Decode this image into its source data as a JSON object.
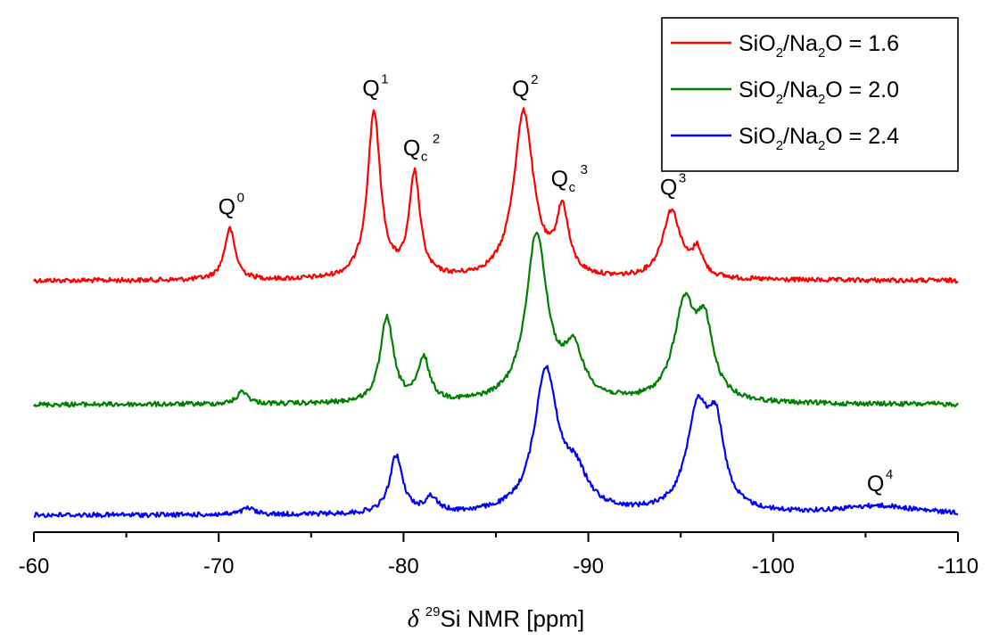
{
  "chart_data": {
    "type": "line",
    "title": "",
    "xlabel": {
      "symbol": "δ",
      "isotope_mass": "29",
      "text": "Si NMR [ppm]"
    },
    "ylabel": "",
    "xlim": [
      -60,
      -110
    ],
    "x_axis_reversed": true,
    "x_ticks": [
      -60,
      -70,
      -80,
      -90,
      -100,
      -110
    ],
    "x_tick_labels": [
      "-60",
      "-70",
      "-80",
      "-90",
      "-100",
      "-110"
    ],
    "y_ticks_shown": false,
    "grid": false,
    "legend_placement": "top-right",
    "series": [
      {
        "name": "SiO2/Na2O = 1.6",
        "legend": {
          "a": "SiO",
          "a_sub": "2",
          "b": "/Na",
          "b_sub": "2",
          "c": "O = 1.6"
        },
        "color": "#ff0000",
        "baseline": 0.0,
        "peaks": [
          {
            "x": -70.6,
            "height": 0.24,
            "width": 0.35
          },
          {
            "x": -78.4,
            "height": 0.78,
            "width": 0.42
          },
          {
            "x": -80.6,
            "height": 0.48,
            "width": 0.35
          },
          {
            "x": -86.5,
            "height": 0.78,
            "width": 0.65
          },
          {
            "x": -88.6,
            "height": 0.3,
            "width": 0.4
          },
          {
            "x": -94.5,
            "height": 0.32,
            "width": 0.6
          },
          {
            "x": -95.9,
            "height": 0.12,
            "width": 0.35
          }
        ]
      },
      {
        "name": "SiO2/Na2O = 2.0",
        "legend": {
          "a": "SiO",
          "a_sub": "2",
          "b": "/Na",
          "b_sub": "2",
          "c": "O = 2.0"
        },
        "color": "#008000",
        "baseline": 0.0,
        "peaks": [
          {
            "x": -71.3,
            "height": 0.06,
            "width": 0.35
          },
          {
            "x": -79.1,
            "height": 0.4,
            "width": 0.42
          },
          {
            "x": -81.1,
            "height": 0.2,
            "width": 0.38
          },
          {
            "x": -87.2,
            "height": 0.78,
            "width": 0.7
          },
          {
            "x": -89.2,
            "height": 0.22,
            "width": 0.65
          },
          {
            "x": -95.2,
            "height": 0.44,
            "width": 0.7
          },
          {
            "x": -96.3,
            "height": 0.32,
            "width": 0.55
          }
        ]
      },
      {
        "name": "SiO2/Na2O = 2.4",
        "legend": {
          "a": "SiO",
          "a_sub": "2",
          "b": "/Na",
          "b_sub": "2",
          "c": "O = 2.4"
        },
        "color": "#0000ff",
        "baseline": 0.0,
        "peaks": [
          {
            "x": -71.6,
            "height": 0.03,
            "width": 0.4
          },
          {
            "x": -79.6,
            "height": 0.27,
            "width": 0.42
          },
          {
            "x": -81.5,
            "height": 0.07,
            "width": 0.4
          },
          {
            "x": -87.7,
            "height": 0.66,
            "width": 0.75
          },
          {
            "x": -89.3,
            "height": 0.16,
            "width": 0.8
          },
          {
            "x": -95.9,
            "height": 0.46,
            "width": 0.7
          },
          {
            "x": -96.9,
            "height": 0.36,
            "width": 0.55
          },
          {
            "x": -105.7,
            "height": 0.04,
            "width": 2.6
          }
        ]
      }
    ],
    "annotations": [
      {
        "base": "Q",
        "sup": "0",
        "sub": "",
        "x": -70.6,
        "series": 0
      },
      {
        "base": "Q",
        "sup": "1",
        "sub": "",
        "x": -78.4,
        "series": 0
      },
      {
        "base": "Q",
        "sup": "2",
        "sub": "c",
        "x": -80.6,
        "series": 0
      },
      {
        "base": "Q",
        "sup": "2",
        "sub": "",
        "x": -86.5,
        "series": 0
      },
      {
        "base": "Q",
        "sup": "3",
        "sub": "c",
        "x": -88.6,
        "series": 0
      },
      {
        "base": "Q",
        "sup": "3",
        "sub": "",
        "x": -94.5,
        "series": 0
      },
      {
        "base": "Q",
        "sup": "4",
        "sub": "",
        "x": -105.7,
        "series": 2
      }
    ]
  }
}
